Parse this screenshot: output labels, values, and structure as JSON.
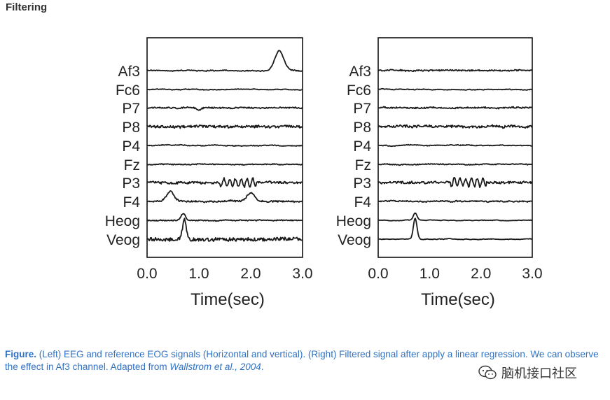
{
  "page": {
    "title": "Filtering"
  },
  "caption": {
    "label": "Figure.",
    "text": " (Left) EEG and reference EOG signals (Horizontal and vertical). (Right) Filtered signal after apply a linear regression. We can observe the effect in Af3 channel. Adapted from ",
    "citation": "Wallstrom et al., 2004",
    "end": "."
  },
  "watermark": {
    "text": "脑机接口社区",
    "icon": "wechat-icon"
  },
  "colors": {
    "caption": "#2f72c4",
    "trace": "#1a1a1a"
  },
  "chart_data": [
    {
      "type": "line",
      "panel": "left",
      "title": "",
      "xlabel": "Time(sec)",
      "ylabel": "",
      "xlim": [
        0,
        3
      ],
      "xticks": [
        "0.0",
        "1.0",
        "2.0",
        "3.0"
      ],
      "channels": [
        "Af3",
        "Fc6",
        "P7",
        "P8",
        "P4",
        "Fz",
        "P3",
        "F4",
        "Heog",
        "Veog"
      ],
      "series": [
        {
          "name": "Af3",
          "noise": 0.6,
          "events": [
            {
              "t": 2.55,
              "amp": -28,
              "width": 0.12
            }
          ]
        },
        {
          "name": "Fc6",
          "noise": 0.4,
          "events": []
        },
        {
          "name": "P7",
          "noise": 0.9,
          "events": [
            {
              "t": 1.0,
              "amp": 3,
              "width": 0.06
            }
          ]
        },
        {
          "name": "P8",
          "noise": 1.7,
          "events": []
        },
        {
          "name": "P4",
          "noise": 0.5,
          "events": []
        },
        {
          "name": "Fz",
          "noise": 0.6,
          "events": []
        },
        {
          "name": "P3",
          "noise": 1.6,
          "oscillation": {
            "t0": 1.4,
            "t1": 2.1,
            "amp": 6
          },
          "events": []
        },
        {
          "name": "F4",
          "noise": 1.0,
          "events": [
            {
              "t": 0.45,
              "amp": -14,
              "width": 0.1
            },
            {
              "t": 2.0,
              "amp": -12,
              "width": 0.1
            }
          ]
        },
        {
          "name": "Heog",
          "noise": 0.6,
          "events": [
            {
              "t": 0.7,
              "amp": -10,
              "width": 0.06
            }
          ]
        },
        {
          "name": "Veog",
          "noise": 2.5,
          "events": [
            {
              "t": 0.72,
              "amp": -30,
              "width": 0.05
            }
          ]
        }
      ]
    },
    {
      "type": "line",
      "panel": "right",
      "title": "",
      "xlabel": "Time(sec)",
      "ylabel": "",
      "xlim": [
        0,
        3
      ],
      "xticks": [
        "0.0",
        "1.0",
        "2.0",
        "3.0"
      ],
      "channels": [
        "Af3",
        "Fc6",
        "P7",
        "P8",
        "P4",
        "Fz",
        "P3",
        "F4",
        "Heog",
        "Veog"
      ],
      "series": [
        {
          "name": "Af3",
          "noise": 0.9,
          "events": []
        },
        {
          "name": "Fc6",
          "noise": 0.4,
          "events": []
        },
        {
          "name": "P7",
          "noise": 0.9,
          "events": []
        },
        {
          "name": "P8",
          "noise": 1.7,
          "events": []
        },
        {
          "name": "P4",
          "noise": 0.5,
          "events": []
        },
        {
          "name": "Fz",
          "noise": 0.6,
          "events": []
        },
        {
          "name": "P3",
          "noise": 1.6,
          "oscillation": {
            "t0": 1.4,
            "t1": 2.1,
            "amp": 6
          },
          "events": []
        },
        {
          "name": "F4",
          "noise": 0.8,
          "events": []
        },
        {
          "name": "Heog",
          "noise": 0.2,
          "events": [
            {
              "t": 0.72,
              "amp": -10,
              "width": 0.05
            }
          ]
        },
        {
          "name": "Veog",
          "noise": 0.3,
          "events": [
            {
              "t": 0.72,
              "amp": -30,
              "width": 0.05
            }
          ]
        }
      ]
    }
  ]
}
